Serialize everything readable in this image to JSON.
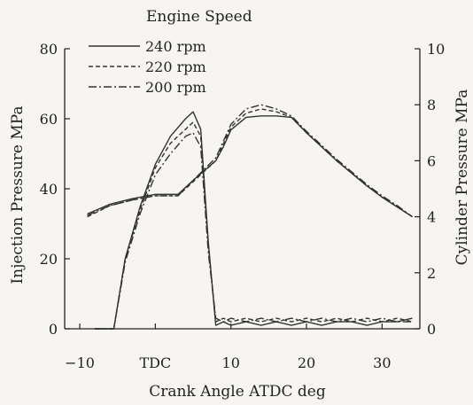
{
  "chart_data": {
    "type": "line",
    "title": "",
    "xlabel": "Crank Angle  ATDC deg",
    "ylabel_left": "Injection Pressure  MPa",
    "ylabel_right": "Cylinder Pressure MPa",
    "legend_title": "Engine Speed",
    "legend_position": "top-left",
    "xlim": [
      -12,
      35
    ],
    "ylim_left": [
      0,
      80
    ],
    "ylim_right": [
      0,
      10
    ],
    "grid": false,
    "x_ticks": [
      {
        "value": -10,
        "label": "−10"
      },
      {
        "value": 0,
        "label": "TDC"
      },
      {
        "value": 10,
        "label": "10"
      },
      {
        "value": 20,
        "label": "20"
      },
      {
        "value": 30,
        "label": "30"
      }
    ],
    "y_left_ticks": [
      0,
      20,
      40,
      60,
      80
    ],
    "y_right_ticks": [
      0,
      2,
      4,
      6,
      8,
      10
    ],
    "series": [
      {
        "name": "240 rpm",
        "dash": "solid",
        "injection_pressure": [
          [
            -8,
            0
          ],
          [
            -5.5,
            0
          ],
          [
            -4,
            20
          ],
          [
            -2,
            35
          ],
          [
            0,
            47
          ],
          [
            2,
            55
          ],
          [
            4,
            60
          ],
          [
            5,
            62
          ],
          [
            6,
            57
          ],
          [
            7,
            25
          ],
          [
            8,
            1
          ],
          [
            9,
            2
          ],
          [
            10,
            1
          ],
          [
            12,
            2
          ],
          [
            14,
            1
          ],
          [
            16,
            2
          ],
          [
            18,
            1
          ],
          [
            20,
            2
          ],
          [
            22,
            1
          ],
          [
            24,
            2
          ],
          [
            26,
            2
          ],
          [
            28,
            1
          ],
          [
            30,
            2
          ],
          [
            32,
            2
          ],
          [
            34,
            3
          ]
        ],
        "cylinder_pressure": [
          [
            -9,
            4.1
          ],
          [
            -6,
            4.45
          ],
          [
            -3,
            4.65
          ],
          [
            0,
            4.8
          ],
          [
            3,
            4.8
          ],
          [
            5,
            5.3
          ],
          [
            8,
            6.0
          ],
          [
            9,
            6.5
          ],
          [
            10,
            7.1
          ],
          [
            12,
            7.55
          ],
          [
            14,
            7.6
          ],
          [
            16,
            7.6
          ],
          [
            18,
            7.55
          ],
          [
            20,
            7.0
          ],
          [
            22,
            6.5
          ],
          [
            24,
            6.0
          ],
          [
            26,
            5.55
          ],
          [
            28,
            5.1
          ],
          [
            30,
            4.7
          ],
          [
            32,
            4.35
          ],
          [
            34,
            4.0
          ]
        ]
      },
      {
        "name": "220 rpm",
        "dash": "dashed",
        "injection_pressure": [
          [
            -8,
            0
          ],
          [
            -5.5,
            0
          ],
          [
            -4,
            20
          ],
          [
            -2,
            34
          ],
          [
            0,
            46
          ],
          [
            2,
            53
          ],
          [
            4,
            57
          ],
          [
            5,
            59
          ],
          [
            6,
            55
          ],
          [
            7,
            24
          ],
          [
            8,
            2
          ],
          [
            9,
            3
          ],
          [
            10,
            2
          ],
          [
            12,
            3
          ],
          [
            14,
            2
          ],
          [
            16,
            3
          ],
          [
            18,
            2
          ],
          [
            20,
            3
          ],
          [
            22,
            2
          ],
          [
            24,
            3
          ],
          [
            26,
            2
          ],
          [
            28,
            3
          ],
          [
            30,
            2
          ],
          [
            32,
            3
          ],
          [
            34,
            2
          ]
        ],
        "cylinder_pressure": [
          [
            -9,
            4.0
          ],
          [
            -6,
            4.4
          ],
          [
            -3,
            4.6
          ],
          [
            0,
            4.75
          ],
          [
            3,
            4.75
          ],
          [
            5,
            5.25
          ],
          [
            8,
            6.0
          ],
          [
            9,
            6.6
          ],
          [
            10,
            7.2
          ],
          [
            12,
            7.7
          ],
          [
            14,
            7.85
          ],
          [
            16,
            7.75
          ],
          [
            18,
            7.55
          ],
          [
            20,
            7.0
          ],
          [
            22,
            6.5
          ],
          [
            24,
            6.0
          ],
          [
            26,
            5.55
          ],
          [
            28,
            5.1
          ],
          [
            30,
            4.7
          ],
          [
            32,
            4.35
          ],
          [
            34,
            4.0
          ]
        ]
      },
      {
        "name": "200 rpm",
        "dash": "dash-dot",
        "injection_pressure": [
          [
            -8,
            0
          ],
          [
            -5.5,
            0
          ],
          [
            -4,
            19
          ],
          [
            -2,
            33
          ],
          [
            0,
            44
          ],
          [
            2,
            50
          ],
          [
            4,
            55
          ],
          [
            5,
            56
          ],
          [
            6,
            52
          ],
          [
            7,
            22
          ],
          [
            8,
            3
          ],
          [
            9,
            2
          ],
          [
            10,
            3
          ],
          [
            12,
            2
          ],
          [
            14,
            3
          ],
          [
            16,
            2
          ],
          [
            18,
            3
          ],
          [
            20,
            2
          ],
          [
            22,
            3
          ],
          [
            24,
            2
          ],
          [
            26,
            3
          ],
          [
            28,
            2
          ],
          [
            30,
            3
          ],
          [
            32,
            2
          ],
          [
            34,
            2
          ]
        ],
        "cylinder_pressure": [
          [
            -9,
            4.05
          ],
          [
            -6,
            4.4
          ],
          [
            -3,
            4.6
          ],
          [
            0,
            4.75
          ],
          [
            3,
            4.75
          ],
          [
            5,
            5.3
          ],
          [
            8,
            6.1
          ],
          [
            9,
            6.7
          ],
          [
            10,
            7.3
          ],
          [
            12,
            7.85
          ],
          [
            14,
            8.0
          ],
          [
            16,
            7.85
          ],
          [
            18,
            7.6
          ],
          [
            20,
            7.05
          ],
          [
            22,
            6.55
          ],
          [
            24,
            6.05
          ],
          [
            26,
            5.6
          ],
          [
            28,
            5.15
          ],
          [
            30,
            4.75
          ],
          [
            32,
            4.4
          ],
          [
            34,
            4.0
          ]
        ]
      }
    ]
  }
}
